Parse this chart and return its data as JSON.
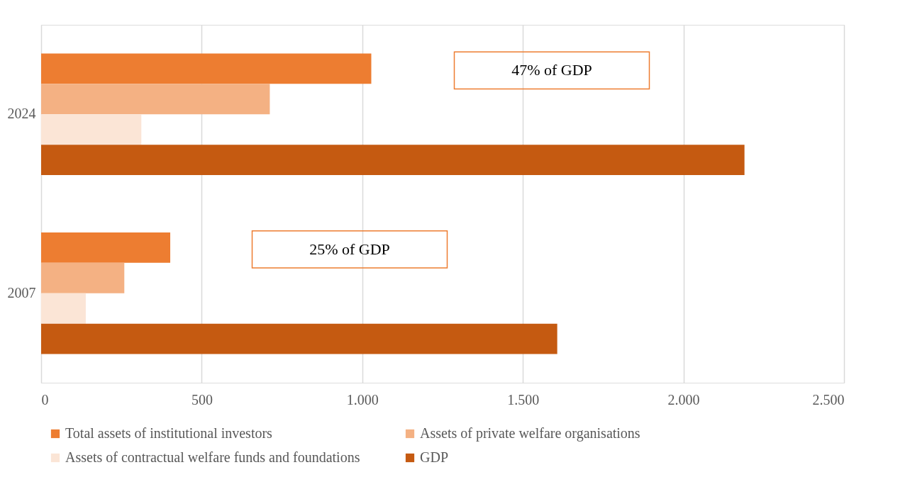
{
  "chart_data": {
    "type": "bar",
    "orientation": "horizontal",
    "categories": [
      "2024",
      "2007"
    ],
    "series": [
      {
        "name": "Total assets of institutional investors",
        "color": "#ed7d31",
        "values": [
          1028,
          402
        ]
      },
      {
        "name": "Assets of private welfare organisations",
        "color": "#f4b183",
        "values": [
          712,
          259
        ]
      },
      {
        "name": "Assets of contractual welfare funds and foundations",
        "color": "#fbe5d6",
        "values": [
          312,
          139
        ]
      },
      {
        "name": "GDP",
        "color": "#c55a11",
        "values": [
          2190,
          1607
        ]
      }
    ],
    "xlim": [
      0,
      2500
    ],
    "xticks": [
      0,
      500,
      {
        "value": 1000,
        "label": "1.000"
      },
      {
        "value": 1500,
        "label": "1.500"
      },
      {
        "value": 2000,
        "label": "2.000"
      },
      {
        "value": 2500,
        "label": "2.500"
      }
    ],
    "grid": "x",
    "legend": "bottom",
    "annotations": [
      "47% of GDP",
      "25% of GDP"
    ]
  }
}
